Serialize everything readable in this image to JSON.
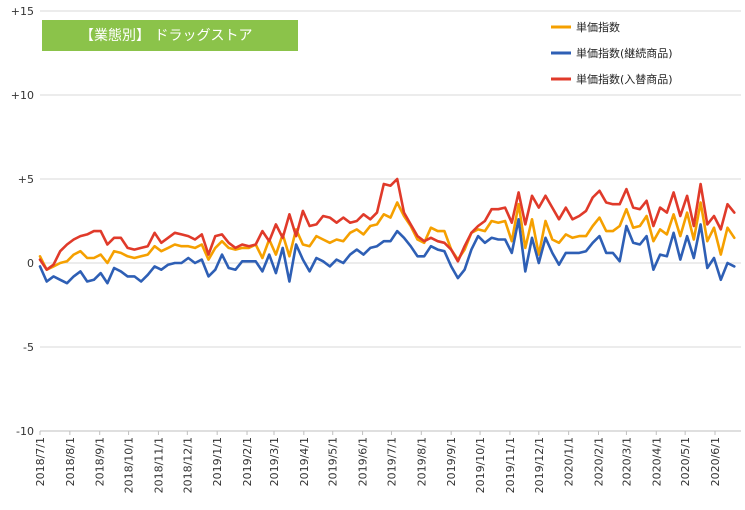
{
  "chart_data": {
    "type": "line",
    "title": "【業態別】 ドラッグストア",
    "title_bg": "#8bc34a",
    "ylim": [
      -10,
      15
    ],
    "yticks": [
      {
        "value": 15,
        "label": "+15"
      },
      {
        "value": 10,
        "label": "+10"
      },
      {
        "value": 5,
        "label": "+5"
      },
      {
        "value": 0,
        "label": "0"
      },
      {
        "value": -5,
        "label": "-5"
      },
      {
        "value": -10,
        "label": "-10"
      }
    ],
    "grid": "horizontal",
    "legend": "top-right",
    "x_tick_labels": [
      "2018/7/1",
      "2018/8/1",
      "2018/9/1",
      "2018/10/1",
      "2018/11/1",
      "2018/12/1",
      "2019/1/1",
      "2019/2/1",
      "2019/3/1",
      "2019/4/1",
      "2019/5/1",
      "2019/6/1",
      "2019/7/1",
      "2019/8/1",
      "2019/9/1",
      "2019/10/1",
      "2019/11/1",
      "2019/12/1",
      "2020/1/1",
      "2020/2/1",
      "2020/3/1",
      "2020/4/1",
      "2020/5/1",
      "2020/6/1"
    ],
    "x_start": "2018-07-01",
    "x_end": "2020-06-28",
    "x_step_days": 7,
    "series": [
      {
        "name": "単価指数",
        "color": "#f5a000",
        "values": [
          0.4,
          -0.4,
          -0.2,
          0.0,
          0.1,
          0.5,
          0.7,
          0.3,
          0.3,
          0.5,
          0.0,
          0.7,
          0.6,
          0.4,
          0.3,
          0.4,
          0.5,
          1.0,
          0.7,
          0.9,
          1.1,
          1.0,
          1.0,
          0.9,
          1.1,
          0.2,
          0.9,
          1.3,
          0.9,
          0.8,
          0.9,
          0.9,
          1.1,
          0.3,
          1.4,
          0.5,
          1.7,
          0.4,
          2.0,
          1.1,
          1.0,
          1.6,
          1.4,
          1.2,
          1.4,
          1.3,
          1.8,
          2.0,
          1.7,
          2.2,
          2.3,
          2.9,
          2.7,
          3.6,
          2.8,
          2.2,
          1.4,
          1.2,
          2.1,
          1.9,
          1.9,
          0.8,
          0.2,
          0.8,
          1.8,
          2.0,
          1.9,
          2.5,
          2.4,
          2.5,
          1.3,
          3.5,
          0.9,
          2.6,
          0.5,
          2.5,
          1.4,
          1.2,
          1.7,
          1.5,
          1.6,
          1.6,
          2.2,
          2.7,
          1.9,
          1.9,
          2.2,
          3.2,
          2.1,
          2.2,
          2.8,
          1.3,
          2.0,
          1.7,
          2.9,
          1.6,
          3.0,
          1.4,
          3.6,
          1.3,
          2.1,
          0.5,
          2.1,
          1.5
        ]
      },
      {
        "name": "単価指数(継続商品)",
        "color": "#2e5fb5",
        "values": [
          -0.2,
          -1.1,
          -0.8,
          -1.0,
          -1.2,
          -0.8,
          -0.5,
          -1.1,
          -1.0,
          -0.6,
          -1.2,
          -0.3,
          -0.5,
          -0.8,
          -0.8,
          -1.1,
          -0.7,
          -0.2,
          -0.4,
          -0.1,
          0.0,
          0.0,
          0.3,
          0.0,
          0.2,
          -0.8,
          -0.4,
          0.5,
          -0.3,
          -0.4,
          0.1,
          0.1,
          0.1,
          -0.5,
          0.5,
          -0.6,
          0.9,
          -1.1,
          1.1,
          0.2,
          -0.5,
          0.3,
          0.1,
          -0.2,
          0.2,
          0.0,
          0.5,
          0.8,
          0.5,
          0.9,
          1.0,
          1.3,
          1.3,
          1.9,
          1.5,
          1.0,
          0.4,
          0.4,
          1.0,
          0.8,
          0.7,
          -0.2,
          -0.9,
          -0.4,
          0.8,
          1.6,
          1.2,
          1.5,
          1.4,
          1.4,
          0.6,
          2.6,
          -0.5,
          1.5,
          0.0,
          1.5,
          0.6,
          -0.1,
          0.6,
          0.6,
          0.6,
          0.7,
          1.2,
          1.6,
          0.6,
          0.6,
          0.1,
          2.2,
          1.2,
          1.1,
          1.6,
          -0.4,
          0.5,
          0.4,
          1.8,
          0.2,
          1.6,
          0.3,
          2.3,
          -0.3,
          0.3,
          -1.0,
          0.0,
          -0.2
        ]
      },
      {
        "name": "単価指数(入替商品)",
        "color": "#e03a2a",
        "values": [
          0.2,
          -0.4,
          -0.1,
          0.7,
          1.1,
          1.4,
          1.6,
          1.7,
          1.9,
          1.9,
          1.1,
          1.5,
          1.5,
          0.9,
          0.8,
          0.9,
          1.0,
          1.8,
          1.2,
          1.5,
          1.8,
          1.7,
          1.6,
          1.4,
          1.7,
          0.5,
          1.6,
          1.7,
          1.2,
          0.9,
          1.1,
          1.0,
          1.1,
          1.9,
          1.3,
          2.3,
          1.5,
          2.9,
          1.6,
          3.1,
          2.2,
          2.3,
          2.8,
          2.7,
          2.4,
          2.7,
          2.4,
          2.5,
          2.9,
          2.6,
          3.0,
          4.7,
          4.6,
          5.0,
          3.0,
          2.3,
          1.6,
          1.3,
          1.5,
          1.3,
          1.2,
          0.8,
          0.1,
          1.0,
          1.8,
          2.2,
          2.5,
          3.2,
          3.2,
          3.3,
          2.4,
          4.2,
          2.3,
          4.0,
          3.3,
          4.0,
          3.3,
          2.6,
          3.3,
          2.6,
          2.8,
          3.1,
          3.9,
          4.3,
          3.6,
          3.5,
          3.5,
          4.4,
          3.3,
          3.2,
          3.7,
          2.2,
          3.3,
          3.0,
          4.2,
          2.8,
          4.0,
          2.2,
          4.7,
          2.3,
          2.8,
          2.0,
          3.5,
          3.0
        ]
      }
    ]
  }
}
